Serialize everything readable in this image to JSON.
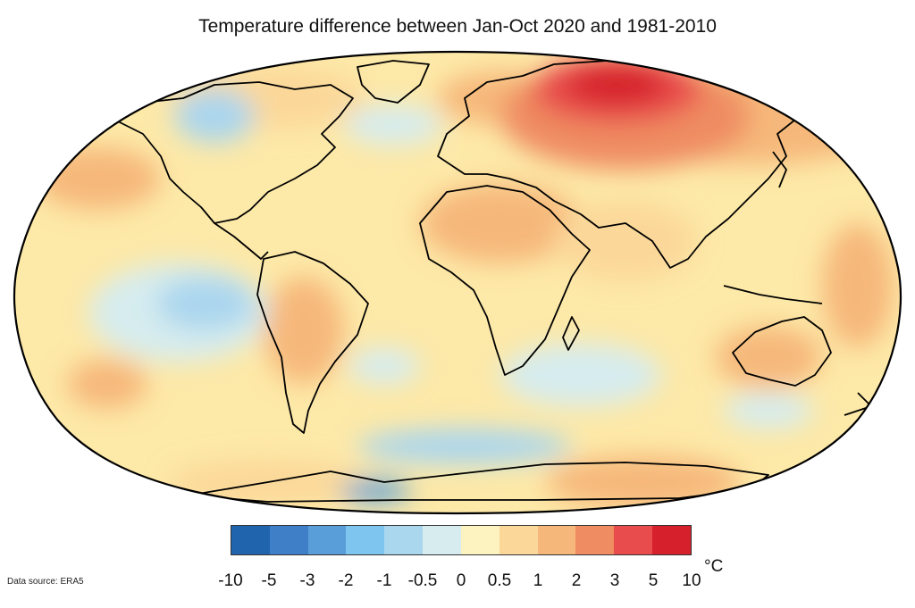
{
  "title": "Temperature difference between Jan-Oct 2020 and 1981-2010",
  "data_source": "Data source: ERA5",
  "legend": {
    "unit": "°C",
    "ticks": [
      "-10",
      "-5",
      "-3",
      "-2",
      "-1",
      "-0.5",
      "0",
      "0.5",
      "1",
      "2",
      "3",
      "5",
      "10"
    ],
    "colors": [
      "#1f64ad",
      "#3e7fc8",
      "#5a9ed9",
      "#7ec6ef",
      "#aad6ee",
      "#d6ecef",
      "#fdf3c0",
      "#fbd89a",
      "#f6b87a",
      "#ef8c62",
      "#e84c4c",
      "#d6202c"
    ]
  },
  "map": {
    "projection": "robinson",
    "background_color": "#fde9a8",
    "land_outline_color": "#000000"
  }
}
